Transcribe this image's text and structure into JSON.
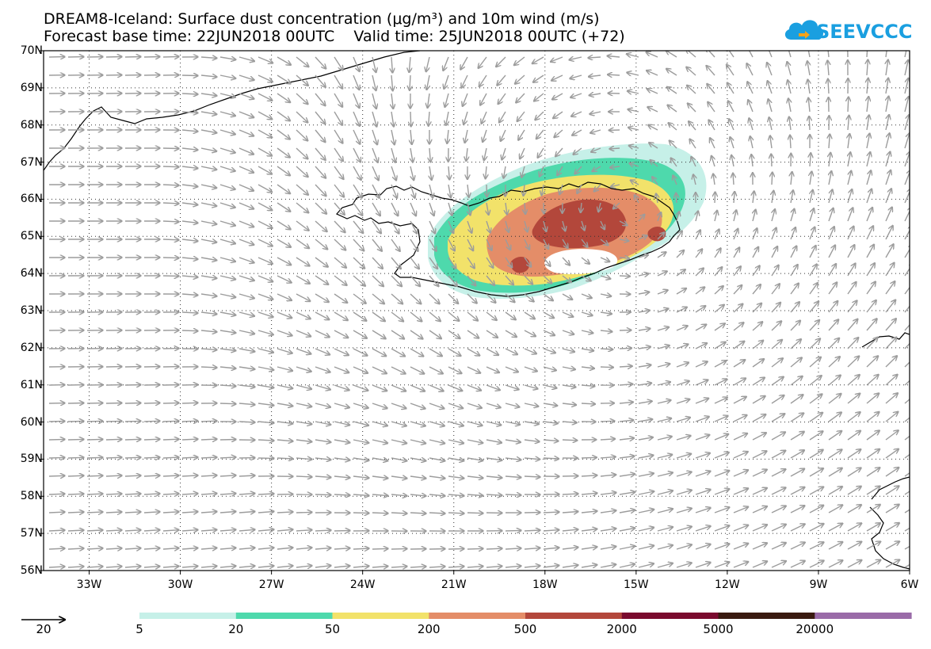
{
  "header": {
    "title_line1": "DREAM8-Iceland: Surface dust concentration (μg/m³) and 10m wind (m/s)",
    "title_line2": "Forecast base time: 22JUN2018 00UTC    Valid time: 25JUN2018 00UTC (+72)",
    "logo_text": "SEEVCCC",
    "logo_color": "#1a9fe0"
  },
  "map": {
    "lat_labels": [
      "70N",
      "69N",
      "68N",
      "67N",
      "66N",
      "65N",
      "64N",
      "63N",
      "62N",
      "61N",
      "60N",
      "59N",
      "58N",
      "57N",
      "56N"
    ],
    "lon_labels": [
      "33W",
      "30W",
      "27W",
      "24W",
      "21W",
      "18W",
      "15W",
      "12W",
      "9W",
      "6W"
    ],
    "lon_range": [
      -34.5,
      -6
    ],
    "lat_range": [
      56,
      70
    ],
    "projection": "lat-lon",
    "grid": "dotted",
    "wind_reference": {
      "value": "20",
      "unit": "m/s"
    }
  },
  "colorbar": {
    "labels": [
      "5",
      "20",
      "50",
      "200",
      "500",
      "2000",
      "5000",
      "20000"
    ],
    "colors": [
      "#c6f0e8",
      "#4ed9ac",
      "#f2e26a",
      "#e48d68",
      "#b3473b",
      "#7a0a2e",
      "#3a1a10",
      "#9a6ba8"
    ]
  },
  "chart_data": {
    "type": "map",
    "variable": "Surface dust concentration (μg/m³) and 10m wind (m/s)",
    "units": "μg/m³",
    "levels": [
      5,
      20,
      50,
      200,
      500,
      2000,
      5000,
      20000
    ],
    "dust_plume": {
      "region": "Iceland",
      "max_concentration_band": "500-2000",
      "center_approx": {
        "lon": -16.8,
        "lat": 65.2
      }
    }
  }
}
